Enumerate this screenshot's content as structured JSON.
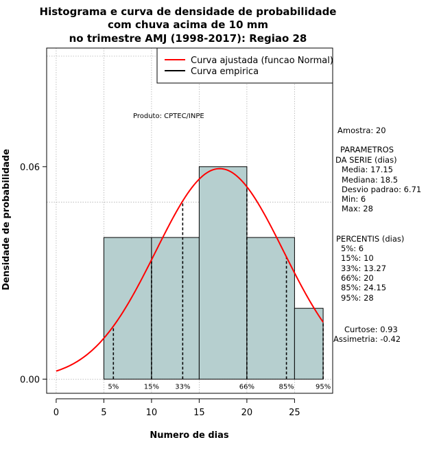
{
  "chart_data": {
    "type": "histogram",
    "title_lines": [
      "Histograma e curva de densidade de probabilidade",
      "com chuva acima de 10 mm",
      "no trimestre AMJ (1998-2017): Regiao 28"
    ],
    "xlabel": "Numero de dias",
    "ylabel": "Densidade de probabilidade",
    "xlim": [
      -1,
      29
    ],
    "ylim": [
      -0.004,
      0.0935
    ],
    "x_ticks": [
      0,
      5,
      10,
      15,
      20,
      25
    ],
    "y_ticks": [
      0.0,
      0.06
    ],
    "y_tick_labels": [
      "0.00",
      "0.06"
    ],
    "grid": true,
    "bars": [
      {
        "x0": 5,
        "x1": 10,
        "density": 0.04
      },
      {
        "x0": 10,
        "x1": 15,
        "density": 0.04
      },
      {
        "x0": 15,
        "x1": 20,
        "density": 0.06
      },
      {
        "x0": 20,
        "x1": 25,
        "density": 0.04
      },
      {
        "x0": 25,
        "x1": 28,
        "density": 0.02
      }
    ],
    "normal_fit": {
      "mean": 17.15,
      "sd": 6.71,
      "x_from": 0,
      "x_to": 28
    },
    "percentile_markers": [
      {
        "label": "5%",
        "x": 6
      },
      {
        "label": "15%",
        "x": 10
      },
      {
        "label": "33%",
        "x": 13.27
      },
      {
        "label": "66%",
        "x": 20
      },
      {
        "label": "85%",
        "x": 24.15
      },
      {
        "label": "95%",
        "x": 28
      }
    ],
    "legend": {
      "position": "top-right",
      "items": [
        {
          "label": "Curva ajustada (funcao Normal)",
          "color": "#ff0000"
        },
        {
          "label": "Curva empirica",
          "color": "#000000"
        }
      ]
    },
    "annotation": "Produto: CPTEC/INPE",
    "stats": {
      "amostra": "Amostra: 20",
      "params_header_1": "PARAMETROS",
      "params_header_2": "DA SERIE (dias)",
      "params": [
        "Media: 17.15",
        "Mediana: 18.5",
        "Desvio padrao: 6.71",
        "Min: 6",
        "Max: 28"
      ],
      "perc_header": "PERCENTIS (dias)",
      "percentis": [
        "5%: 6",
        "15%: 10",
        "33%: 13.27",
        "66%: 20",
        "85%: 24.15",
        "95%: 28"
      ],
      "curtose": "Curtose: 0.93",
      "assimetria": "Assimetria: -0.42"
    },
    "colors": {
      "bar_fill": "#b6cfcf",
      "fit": "#ff0000",
      "grid": "#b0b0b0"
    }
  }
}
